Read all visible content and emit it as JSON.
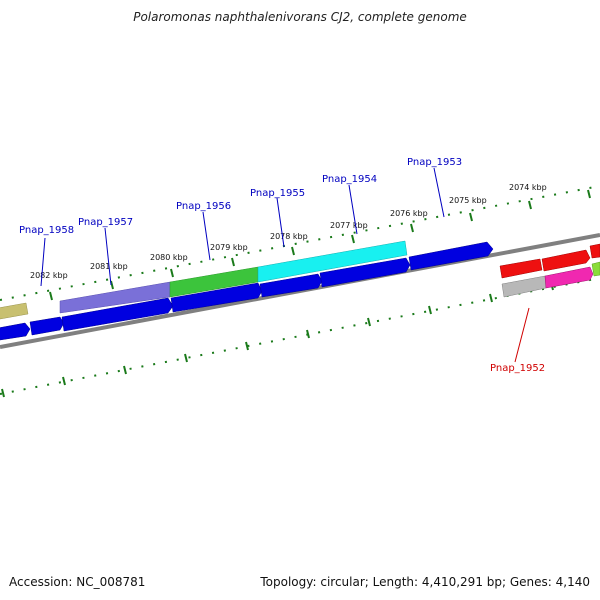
{
  "title": "Polaromonas naphthalenivorans CJ2, complete genome",
  "footer": {
    "accession": "Accession: NC_008781",
    "summary": "Topology: circular; Length: 4,410,291 bp; Genes: 4,140"
  },
  "scale_labels": [
    "2082 kbp",
    "2081 kbp",
    "2080 kbp",
    "2079 kbp",
    "2078 kbp",
    "2077 kbp",
    "2076 kbp",
    "2075 kbp",
    "2074 kbp"
  ],
  "gene_labels": {
    "top": [
      "Pnap_1958",
      "Pnap_1957",
      "Pnap_1956",
      "Pnap_1955",
      "Pnap_1954",
      "Pnap_1953"
    ],
    "bottom": [
      "Pnap_1952"
    ]
  },
  "colors": {
    "blue": "#0000e0",
    "purple": "#7a70d8",
    "green": "#3cc43c",
    "cyan": "#18f0f0",
    "red": "#ee1010",
    "pink": "#f028b0",
    "gray": "#b8b8b8",
    "olive": "#c8c070",
    "tick": "#1a7a1a",
    "label_blue": "#0000c0",
    "label_red": "#d00000"
  }
}
